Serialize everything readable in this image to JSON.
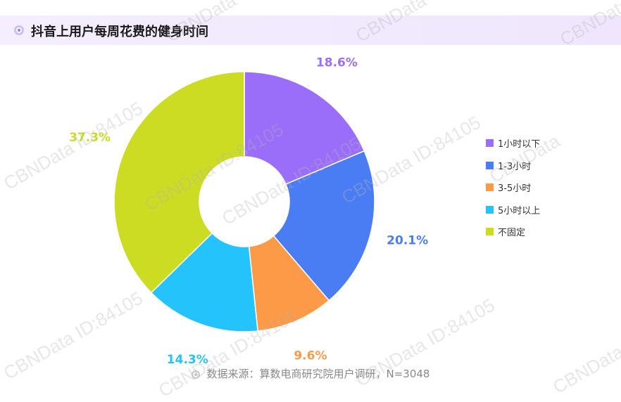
{
  "title": "抖音上用户每周花费的健身时间",
  "source": "数据来源：算数电商研究院用户调研，N=3048",
  "watermarks": [
    "CBNData ID:84105",
    "CBNData"
  ],
  "chart_data": {
    "type": "pie",
    "donut": true,
    "legend_position": "right",
    "categories": [
      "1小时以下",
      "1-3小时",
      "3-5小时",
      "5小时以上",
      "不固定"
    ],
    "values": [
      18.6,
      20.1,
      9.6,
      14.3,
      37.3
    ],
    "labels": [
      "18.6%",
      "20.1%",
      "9.6%",
      "14.3%",
      "37.3%"
    ],
    "colors": [
      "#9a6ef8",
      "#4a7cf4",
      "#fd9a48",
      "#25c3fb",
      "#cbdc22"
    ]
  }
}
